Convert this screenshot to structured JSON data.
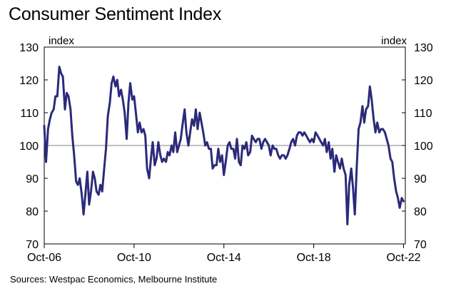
{
  "chart_data": {
    "type": "line",
    "title": "Consumer Sentiment Index",
    "source": "Sources: Westpac Economics, Melbourne Institute",
    "left_unit": "index",
    "right_unit": "index",
    "ylim": [
      70,
      130
    ],
    "yticks": [
      70,
      80,
      90,
      100,
      110,
      120,
      130
    ],
    "xlim": [
      2006.75,
      2022.83
    ],
    "xticks": [
      {
        "label": "Oct-06",
        "x": 2006.75
      },
      {
        "label": "Oct-10",
        "x": 2010.75
      },
      {
        "label": "Oct-14",
        "x": 2014.75
      },
      {
        "label": "Oct-18",
        "x": 2018.75
      },
      {
        "label": "Oct-22",
        "x": 2022.75
      }
    ],
    "reference_line": 100,
    "line_color": "#2b2a7a",
    "series": [
      {
        "points": [
          [
            2006.75,
            106
          ],
          [
            2006.83,
            95
          ],
          [
            2006.92,
            105
          ],
          [
            2007.0,
            108
          ],
          [
            2007.08,
            110
          ],
          [
            2007.17,
            111
          ],
          [
            2007.25,
            115
          ],
          [
            2007.33,
            115
          ],
          [
            2007.42,
            124
          ],
          [
            2007.5,
            122
          ],
          [
            2007.58,
            121
          ],
          [
            2007.67,
            111
          ],
          [
            2007.75,
            116
          ],
          [
            2007.83,
            115
          ],
          [
            2007.92,
            111
          ],
          [
            2008.0,
            103
          ],
          [
            2008.08,
            97
          ],
          [
            2008.17,
            89
          ],
          [
            2008.25,
            88
          ],
          [
            2008.33,
            90
          ],
          [
            2008.42,
            85
          ],
          [
            2008.5,
            79
          ],
          [
            2008.58,
            85
          ],
          [
            2008.67,
            92
          ],
          [
            2008.75,
            82
          ],
          [
            2008.83,
            86
          ],
          [
            2008.92,
            92
          ],
          [
            2009.0,
            90
          ],
          [
            2009.08,
            86
          ],
          [
            2009.17,
            85
          ],
          [
            2009.25,
            88
          ],
          [
            2009.33,
            86
          ],
          [
            2009.42,
            93
          ],
          [
            2009.5,
            99
          ],
          [
            2009.58,
            109
          ],
          [
            2009.67,
            113
          ],
          [
            2009.75,
            119
          ],
          [
            2009.83,
            121
          ],
          [
            2009.92,
            118
          ],
          [
            2010.0,
            120
          ],
          [
            2010.08,
            115
          ],
          [
            2010.17,
            117
          ],
          [
            2010.25,
            114
          ],
          [
            2010.33,
            110
          ],
          [
            2010.42,
            102
          ],
          [
            2010.5,
            113
          ],
          [
            2010.58,
            119
          ],
          [
            2010.67,
            114
          ],
          [
            2010.75,
            115
          ],
          [
            2010.83,
            110
          ],
          [
            2010.92,
            104
          ],
          [
            2011.0,
            107
          ],
          [
            2011.08,
            104
          ],
          [
            2011.17,
            105
          ],
          [
            2011.25,
            103
          ],
          [
            2011.33,
            93
          ],
          [
            2011.42,
            90
          ],
          [
            2011.5,
            96
          ],
          [
            2011.58,
            101
          ],
          [
            2011.67,
            94
          ],
          [
            2011.75,
            96
          ],
          [
            2011.83,
            101
          ],
          [
            2011.92,
            97
          ],
          [
            2012.0,
            95
          ],
          [
            2012.08,
            96
          ],
          [
            2012.17,
            95
          ],
          [
            2012.25,
            98
          ],
          [
            2012.33,
            97
          ],
          [
            2012.42,
            100
          ],
          [
            2012.5,
            98
          ],
          [
            2012.58,
            104
          ],
          [
            2012.67,
            98
          ],
          [
            2012.75,
            100
          ],
          [
            2012.83,
            102
          ],
          [
            2012.92,
            107
          ],
          [
            2013.0,
            111
          ],
          [
            2013.08,
            104
          ],
          [
            2013.17,
            100
          ],
          [
            2013.25,
            104
          ],
          [
            2013.33,
            108
          ],
          [
            2013.42,
            106
          ],
          [
            2013.5,
            111
          ],
          [
            2013.58,
            105
          ],
          [
            2013.67,
            110
          ],
          [
            2013.75,
            107
          ],
          [
            2013.83,
            104
          ],
          [
            2013.92,
            100
          ],
          [
            2014.0,
            101
          ],
          [
            2014.08,
            99
          ],
          [
            2014.17,
            99
          ],
          [
            2014.25,
            93
          ],
          [
            2014.33,
            94
          ],
          [
            2014.42,
            94
          ],
          [
            2014.5,
            99
          ],
          [
            2014.58,
            95
          ],
          [
            2014.67,
            97
          ],
          [
            2014.75,
            91
          ],
          [
            2014.83,
            95
          ],
          [
            2014.92,
            100
          ],
          [
            2015.0,
            101
          ],
          [
            2015.08,
            99
          ],
          [
            2015.17,
            99
          ],
          [
            2015.25,
            96
          ],
          [
            2015.33,
            102
          ],
          [
            2015.42,
            95
          ],
          [
            2015.5,
            94
          ],
          [
            2015.58,
            100
          ],
          [
            2015.67,
            99
          ],
          [
            2015.75,
            101
          ],
          [
            2015.83,
            97
          ],
          [
            2015.92,
            98
          ],
          [
            2016.0,
            103
          ],
          [
            2016.08,
            102
          ],
          [
            2016.17,
            101
          ],
          [
            2016.25,
            102
          ],
          [
            2016.33,
            102
          ],
          [
            2016.42,
            99
          ],
          [
            2016.5,
            101
          ],
          [
            2016.58,
            102
          ],
          [
            2016.67,
            101
          ],
          [
            2016.75,
            100
          ],
          [
            2016.83,
            97
          ],
          [
            2016.92,
            100
          ],
          [
            2017.0,
            99
          ],
          [
            2017.08,
            99
          ],
          [
            2017.17,
            97
          ],
          [
            2017.25,
            96
          ],
          [
            2017.33,
            97
          ],
          [
            2017.42,
            97
          ],
          [
            2017.5,
            96
          ],
          [
            2017.58,
            97
          ],
          [
            2017.67,
            99
          ],
          [
            2017.75,
            101
          ],
          [
            2017.83,
            102
          ],
          [
            2017.92,
            100
          ],
          [
            2018.0,
            103
          ],
          [
            2018.08,
            104
          ],
          [
            2018.17,
            104
          ],
          [
            2018.25,
            103
          ],
          [
            2018.33,
            104
          ],
          [
            2018.42,
            103
          ],
          [
            2018.5,
            102
          ],
          [
            2018.58,
            101
          ],
          [
            2018.67,
            102
          ],
          [
            2018.75,
            101
          ],
          [
            2018.83,
            104
          ],
          [
            2018.92,
            103
          ],
          [
            2019.0,
            102
          ],
          [
            2019.08,
            101
          ],
          [
            2019.17,
            100
          ],
          [
            2019.25,
            102
          ],
          [
            2019.33,
            98
          ],
          [
            2019.42,
            101
          ],
          [
            2019.5,
            96
          ],
          [
            2019.58,
            99
          ],
          [
            2019.67,
            92
          ],
          [
            2019.75,
            97
          ],
          [
            2019.83,
            95
          ],
          [
            2019.92,
            93
          ],
          [
            2020.0,
            96
          ],
          [
            2020.08,
            93
          ],
          [
            2020.17,
            91
          ],
          [
            2020.25,
            76
          ],
          [
            2020.33,
            88
          ],
          [
            2020.42,
            93
          ],
          [
            2020.5,
            87
          ],
          [
            2020.58,
            79
          ],
          [
            2020.67,
            94
          ],
          [
            2020.75,
            105
          ],
          [
            2020.83,
            107
          ],
          [
            2020.92,
            112
          ],
          [
            2021.0,
            107
          ],
          [
            2021.08,
            111
          ],
          [
            2021.17,
            112
          ],
          [
            2021.25,
            118
          ],
          [
            2021.33,
            114
          ],
          [
            2021.42,
            108
          ],
          [
            2021.5,
            104
          ],
          [
            2021.58,
            107
          ],
          [
            2021.67,
            104
          ],
          [
            2021.75,
            105
          ],
          [
            2021.83,
            105
          ],
          [
            2021.92,
            104
          ],
          [
            2022.0,
            102
          ],
          [
            2022.08,
            100
          ],
          [
            2022.17,
            96
          ],
          [
            2022.25,
            95
          ],
          [
            2022.33,
            90
          ],
          [
            2022.42,
            86
          ],
          [
            2022.5,
            84
          ],
          [
            2022.58,
            81
          ],
          [
            2022.67,
            84
          ],
          [
            2022.75,
            83
          ]
        ]
      }
    ],
    "grid": false,
    "legend": "none"
  }
}
